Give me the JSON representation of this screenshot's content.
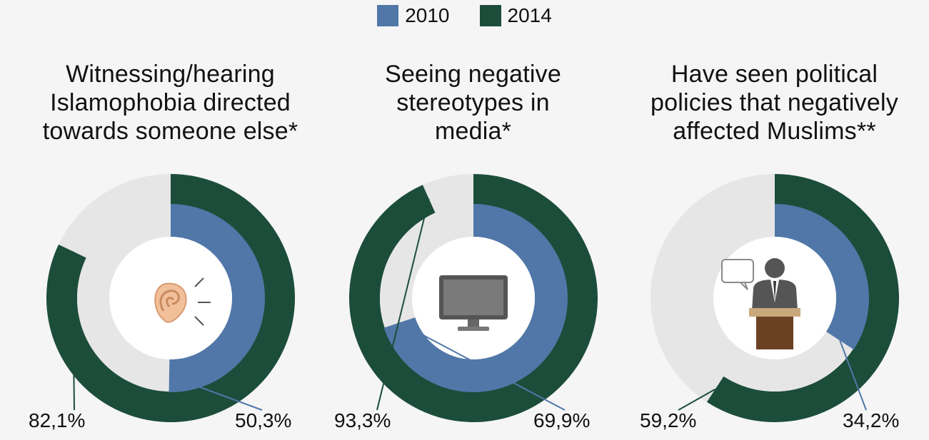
{
  "colors": {
    "s2010": "#5077a8",
    "s2014": "#1c4d3a",
    "track": "#e6e6e6",
    "background": "#f5f5f5"
  },
  "legend": [
    {
      "label": "2010",
      "color": "#5077a8"
    },
    {
      "label": "2014",
      "color": "#1c4d3a"
    }
  ],
  "panels": [
    {
      "title": "Witnessing/hearing\nIslamophobia directed\ntowards someone else*",
      "icon": "ear-icon",
      "label_2014": "82,1%",
      "label_2010": "50,3%"
    },
    {
      "title": "Seeing negative\nstereotypes in\nmedia*",
      "icon": "monitor-icon",
      "label_2014": "93,3%",
      "label_2010": "69,9%"
    },
    {
      "title": "Have seen political\npolicies that negatively\naffected Muslims**",
      "icon": "politician-podium-icon",
      "label_2014": "59,2%",
      "label_2010": "34,2%"
    }
  ],
  "chart_data": [
    {
      "type": "pie",
      "title": "Witnessing/hearing Islamophobia directed towards someone else*",
      "series": [
        {
          "name": "2010",
          "values": [
            50.3
          ]
        },
        {
          "name": "2014",
          "values": [
            82.1
          ]
        }
      ]
    },
    {
      "type": "pie",
      "title": "Seeing negative stereotypes in media*",
      "series": [
        {
          "name": "2010",
          "values": [
            69.9
          ]
        },
        {
          "name": "2014",
          "values": [
            93.3
          ]
        }
      ]
    },
    {
      "type": "pie",
      "title": "Have seen political policies that negatively affected Muslims**",
      "series": [
        {
          "name": "2010",
          "values": [
            34.2
          ]
        },
        {
          "name": "2014",
          "values": [
            59.2
          ]
        }
      ]
    }
  ]
}
